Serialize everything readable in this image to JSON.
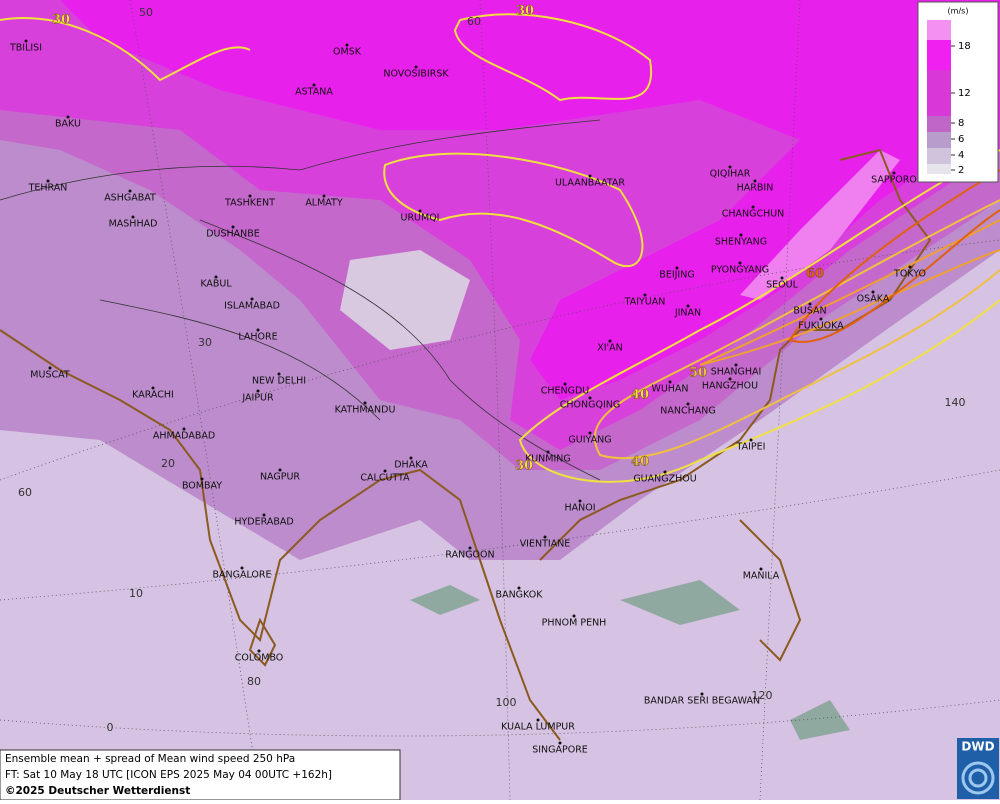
{
  "map": {
    "cities": [
      "OMSK",
      "NOVOSIBIRSK",
      "ASTANA",
      "TBILISI",
      "BAKU",
      "TEHRAN",
      "ASHGABAT",
      "MASHHAD",
      "TASHKENT",
      "ALMATY",
      "DUSHANBE",
      "URUMQI",
      "ULAANBAATAR",
      "QIQIHAR",
      "HARBIN",
      "CHANGCHUN",
      "SHENYANG",
      "SAPPORO",
      "BEIJING",
      "PYONGYANG",
      "SEOUL",
      "TOKYO",
      "TAIYUAN",
      "JINAN",
      "BUSAN",
      "OSAKA",
      "FUKUOKA",
      "KABUL",
      "ISLAMABAD",
      "LAHORE",
      "XI'AN",
      "NEW DELHI",
      "JAIPUR",
      "MUSCAT",
      "KARACHI",
      "CHENGDU",
      "WUHAN",
      "SHANGHAI",
      "HANGZHOU",
      "CHONGQING",
      "NANCHANG",
      "KATHMANDU",
      "AHMADABAD",
      "GUIYANG",
      "TAIPEI",
      "KUNMING",
      "DHAKA",
      "CALCUTTA",
      "NAGPUR",
      "BOMBAY",
      "GUANGZHOU",
      "HANOI",
      "HYDERABAD",
      "VIENTIANE",
      "RANGOON",
      "BANGALORE",
      "MANILA",
      "BANGKOK",
      "PHNOM PENH",
      "COLOMBO",
      "BANDAR SERI BEGAWAN",
      "KUALA LUMPUR",
      "SINGAPORE"
    ],
    "contour_labels": [
      30,
      30,
      60,
      50,
      40,
      40,
      30
    ],
    "grid_labels": [
      50,
      60,
      30,
      20,
      60,
      10,
      80,
      0,
      100,
      120,
      140
    ]
  },
  "legend": {
    "unit": "(m/s)",
    "ticks": [
      18,
      12,
      8,
      6,
      4,
      2
    ]
  },
  "footer": {
    "title": "Ensemble mean + spread of Mean wind speed 250 hPa",
    "forecast": "FT: Sat 10 May 18 UTC [ICON EPS 2025 May 04 00UTC +162h]",
    "copyright": "©2025 Deutscher Wetterdienst"
  },
  "logo": "DWD"
}
